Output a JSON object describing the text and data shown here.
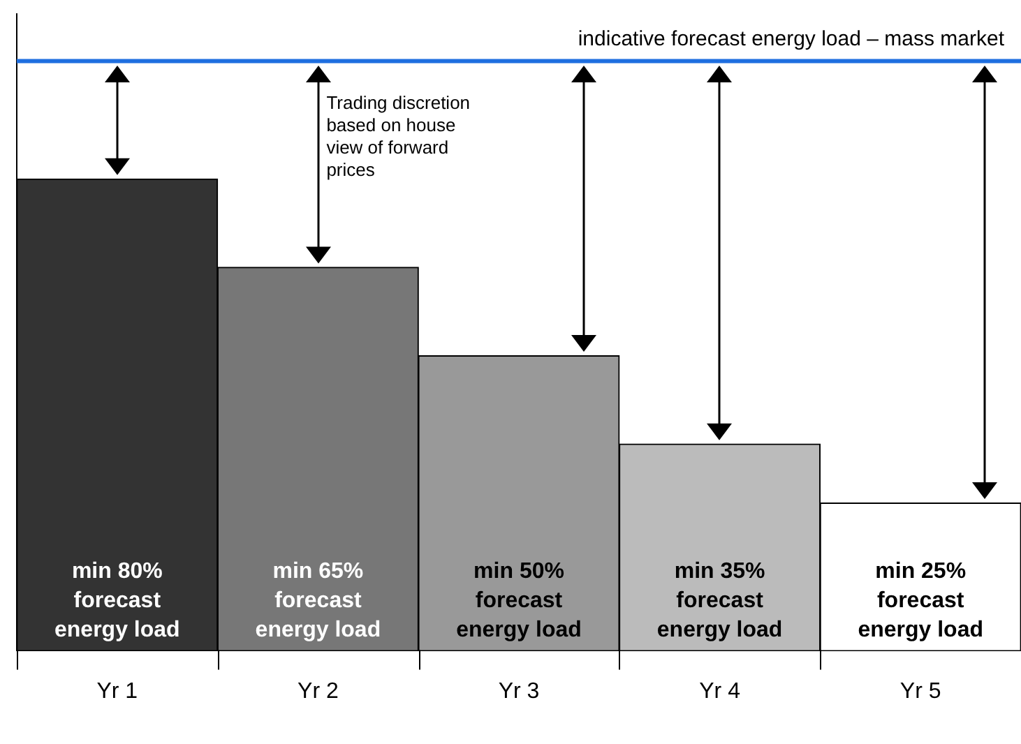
{
  "chart_data": {
    "type": "bar",
    "categories": [
      "Yr 1",
      "Yr 2",
      "Yr 3",
      "Yr 4",
      "Yr 5"
    ],
    "values": [
      80,
      65,
      50,
      35,
      25
    ],
    "colors": [
      "#333333",
      "#777777",
      "#999999",
      "#bbbbbb",
      "#ffffff"
    ],
    "value_labels": [
      "min 80%\nforecast\nenergy load",
      "min 65%\nforecast\nenergy load",
      "min 50%\nforecast\nenergy load",
      "min 35%\nforecast\nenergy load",
      "min 25%\nforecast\nenergy load"
    ],
    "ref_lines": [
      {
        "axis": "y",
        "value": 100,
        "label": "indicative forecast energy load – mass market",
        "color": "#1f6fe0"
      }
    ],
    "annotations": [
      "Trading discretion based on house view of forward prices"
    ],
    "legend": false
  }
}
